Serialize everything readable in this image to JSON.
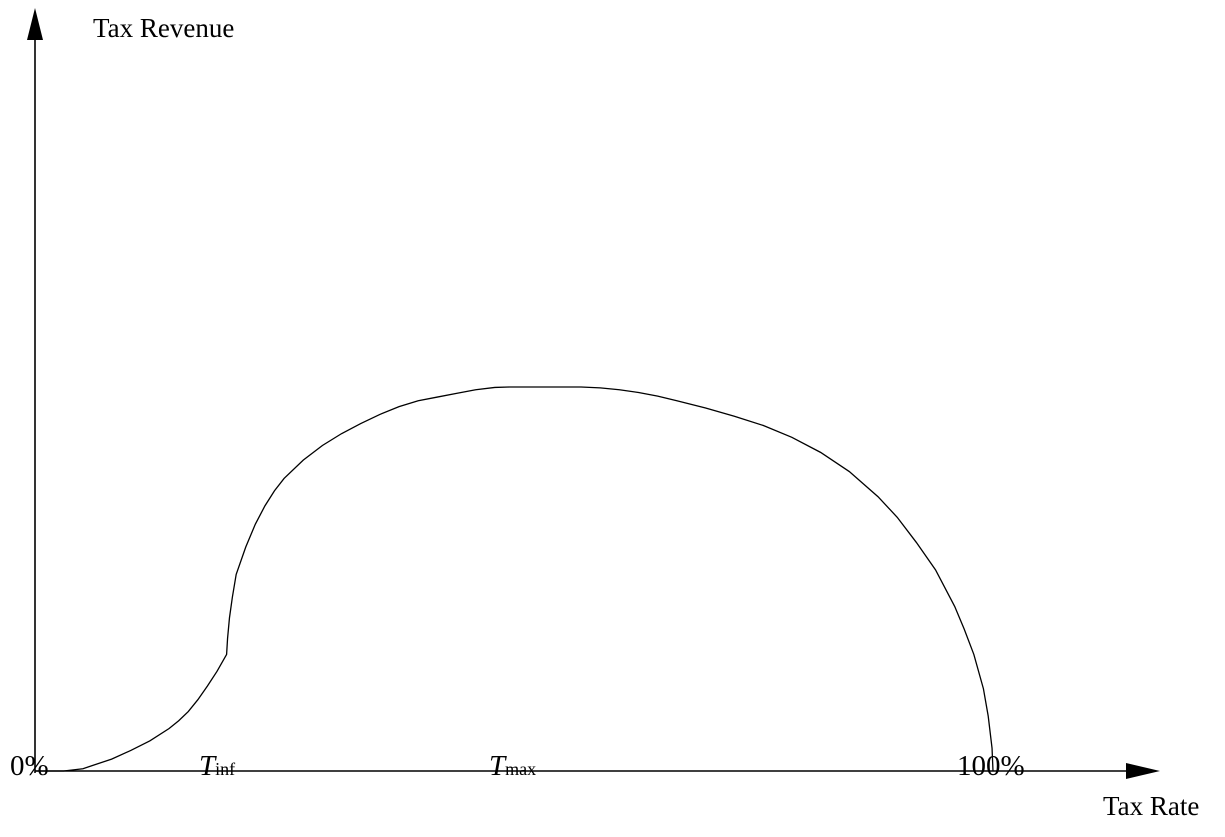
{
  "chart_data": {
    "type": "line",
    "title": "",
    "xlabel": "Tax Rate",
    "ylabel": "Tax Revenue",
    "xlim": [
      0,
      100
    ],
    "ylim": [
      0,
      1
    ],
    "grid": false,
    "legend": "none",
    "tick_labels": [
      {
        "id": "zero",
        "main": "0%",
        "sub": "",
        "x": 0
      },
      {
        "id": "tinf",
        "main": "T",
        "sub": "inf",
        "x": 20.1
      },
      {
        "id": "tmax",
        "main": "T",
        "sub": "max",
        "x": 49.5
      },
      {
        "id": "hundred",
        "main": "100%",
        "sub": "",
        "x": 100
      }
    ],
    "series": [
      {
        "x": [
          0,
          3,
          5,
          6,
          8,
          10,
          12,
          14,
          15,
          16,
          17,
          18,
          19,
          20,
          20.1,
          20.3,
          20.6,
          21,
          22,
          23,
          24,
          25,
          26,
          28,
          30,
          32,
          34,
          36,
          38,
          40,
          42,
          44,
          46,
          48,
          49.5,
          51,
          53,
          55,
          57,
          59,
          61,
          63,
          65,
          67,
          70,
          73,
          76,
          79,
          82,
          85,
          88,
          90,
          92,
          94,
          96,
          97,
          98,
          99,
          99.5,
          99.9,
          100
        ],
        "y": [
          0,
          0,
          0.005,
          0.012,
          0.026,
          0.045,
          0.066,
          0.093,
          0.11,
          0.13,
          0.156,
          0.186,
          0.218,
          0.255,
          0.29,
          0.335,
          0.38,
          0.43,
          0.49,
          0.54,
          0.58,
          0.613,
          0.64,
          0.68,
          0.712,
          0.738,
          0.76,
          0.78,
          0.797,
          0.81,
          0.818,
          0.826,
          0.834,
          0.839,
          0.84,
          0.84,
          0.84,
          0.84,
          0.84,
          0.838,
          0.834,
          0.828,
          0.82,
          0.81,
          0.794,
          0.776,
          0.756,
          0.73,
          0.697,
          0.655,
          0.6,
          0.555,
          0.5,
          0.44,
          0.36,
          0.31,
          0.255,
          0.18,
          0.12,
          0.05,
          0
        ]
      }
    ],
    "colors": {
      "axis": "#000000",
      "curve": "#000000"
    }
  }
}
